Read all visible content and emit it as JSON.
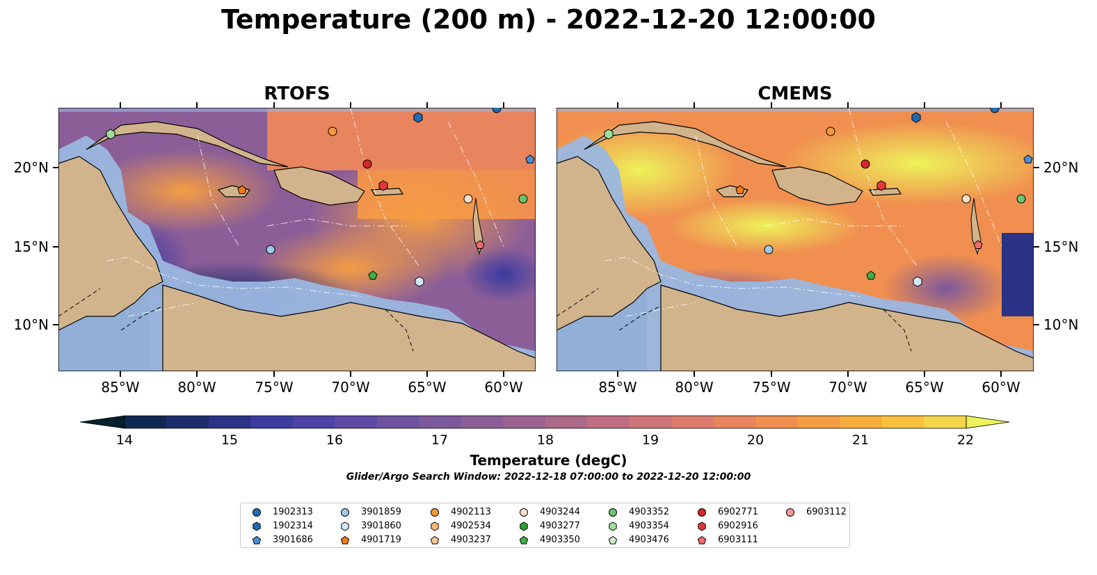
{
  "title": "Temperature (200 m) - 2022-12-20 12:00:00",
  "panels": [
    {
      "title": "RTOFS"
    },
    {
      "title": "CMEMS"
    }
  ],
  "lat_ticks": [
    "20°N",
    "15°N",
    "10°N"
  ],
  "lon_ticks": [
    "85°W",
    "80°W",
    "75°W",
    "70°W",
    "65°W",
    "60°W"
  ],
  "colorbar": {
    "label": "Temperature (degC)",
    "ticks": [
      "14",
      "15",
      "16",
      "17",
      "18",
      "19",
      "20",
      "21",
      "22"
    ],
    "min": 14,
    "max": 22,
    "step": 0.5,
    "colors": [
      "#04202e",
      "#0f2851",
      "#1d2d6b",
      "#2a3386",
      "#3b3ba0",
      "#4c44a5",
      "#5e4ba3",
      "#6d52a0",
      "#7c589c",
      "#8b5e98",
      "#9c6391",
      "#ad6988",
      "#be6e80",
      "#ce7578",
      "#dc7b6d",
      "#e8845e",
      "#f08f50",
      "#f59d43",
      "#f8ae3d",
      "#f9c13c",
      "#f5d64a",
      "#eef25a"
    ]
  },
  "search_window": "Glider/Argo Search Window: 2022-12-18 07:00:00 to 2022-12-20 12:00:00",
  "legend": [
    {
      "id": "1902313",
      "marker": "circle",
      "color": "#1f6db5"
    },
    {
      "id": "1902314",
      "marker": "hexagon",
      "color": "#1f6db5"
    },
    {
      "id": "3901686",
      "marker": "pentagon",
      "color": "#4a8fd6"
    },
    {
      "id": "3901859",
      "marker": "circle",
      "color": "#9ec8ec"
    },
    {
      "id": "3901860",
      "marker": "hexagon",
      "color": "#d4e8f7"
    },
    {
      "id": "4901719",
      "marker": "pentagon",
      "color": "#f07b12"
    },
    {
      "id": "4902113",
      "marker": "circle",
      "color": "#f59a3c"
    },
    {
      "id": "4902534",
      "marker": "hexagon",
      "color": "#f9b877"
    },
    {
      "id": "4903237",
      "marker": "pentagon",
      "color": "#fcc998"
    },
    {
      "id": "4903244",
      "marker": "circle",
      "color": "#fde0c6"
    },
    {
      "id": "4903277",
      "marker": "hexagon",
      "color": "#2ca02c"
    },
    {
      "id": "4903350",
      "marker": "pentagon",
      "color": "#43b043"
    },
    {
      "id": "4903352",
      "marker": "circle",
      "color": "#6cc46c"
    },
    {
      "id": "4903354",
      "marker": "hexagon",
      "color": "#9ede9a"
    },
    {
      "id": "4903476",
      "marker": "pentagon",
      "color": "#d0f2cc"
    },
    {
      "id": "6902771",
      "marker": "circle",
      "color": "#d62728"
    },
    {
      "id": "6902916",
      "marker": "hexagon",
      "color": "#e0393a"
    },
    {
      "id": "6903111",
      "marker": "pentagon",
      "color": "#ee6b6b"
    },
    {
      "id": "6903112",
      "marker": "circle",
      "color": "#f79a9a"
    }
  ],
  "colors": {
    "land": "#d2b48c",
    "shelf": "#9ab7e0",
    "coast": "#000000"
  }
}
